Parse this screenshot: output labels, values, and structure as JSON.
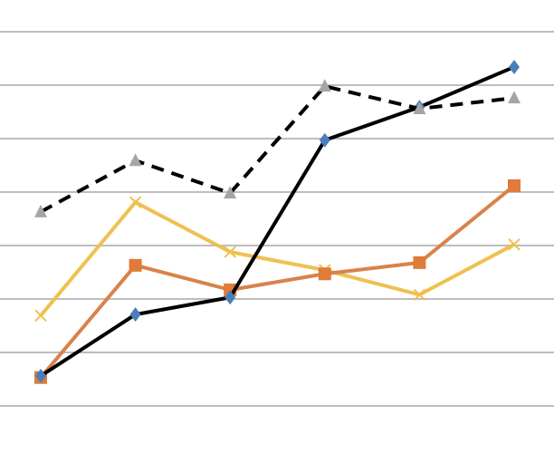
{
  "chart_data": {
    "type": "line",
    "categories": [
      null,
      null,
      null,
      null,
      null,
      null
    ],
    "ylim": [
      0,
      7
    ],
    "yticks": [
      0,
      1,
      2,
      3,
      4,
      5,
      6,
      7
    ],
    "grid": true,
    "series": [
      {
        "color": "#f0c050",
        "marker": "x",
        "marker_color": "#f0c050",
        "dash": false,
        "values": [
          1.69,
          3.81,
          2.88,
          2.54,
          2.08,
          3.02
        ]
      },
      {
        "color": "#d9824a",
        "marker": "square",
        "marker_color": "#e07b39",
        "dash": false,
        "values": [
          0.53,
          2.63,
          2.17,
          2.47,
          2.68,
          4.12
        ]
      },
      {
        "color": "#000000",
        "marker": "diamond",
        "marker_color": "#4a7ebb",
        "dash": false,
        "values": [
          0.56,
          1.71,
          2.03,
          4.97,
          5.59,
          6.34
        ]
      },
      {
        "color": "#000000",
        "marker": "triangle",
        "marker_color": "#a5a5a5",
        "dash": true,
        "values": [
          3.63,
          4.59,
          3.98,
          5.98,
          5.56,
          5.76
        ]
      }
    ]
  }
}
